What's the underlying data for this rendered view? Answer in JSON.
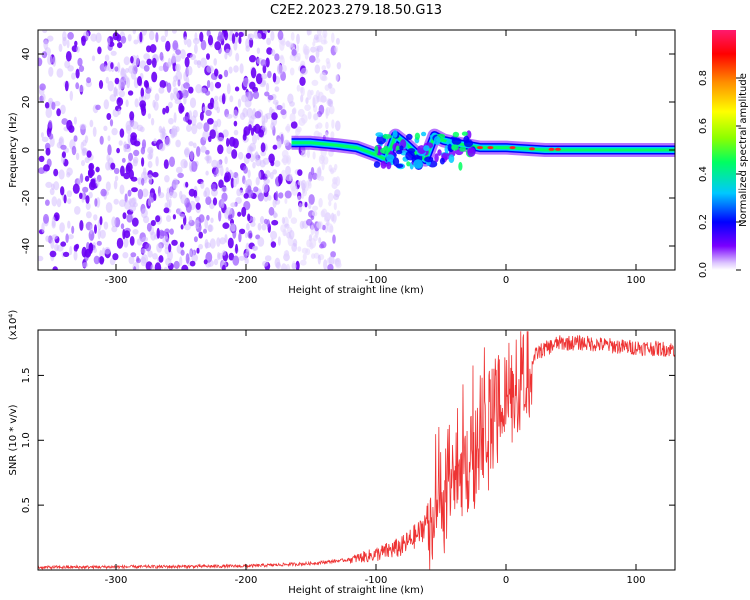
{
  "title": "C2E2.2023.279.18.50.G13",
  "chart_data": [
    {
      "type": "heatmap",
      "panel": "top",
      "xlabel": "Height of straight line (km)",
      "ylabel": "Frequency (Hz)",
      "xlim": [
        -360,
        130
      ],
      "ylim": [
        -50,
        50
      ],
      "x_ticks": [
        -300,
        -200,
        -100,
        0,
        100
      ],
      "y_ticks": [
        -40,
        -20,
        0,
        20,
        40
      ],
      "colorbar": {
        "label": "Normalized spectral amplitude",
        "range": [
          0.0,
          1.0
        ],
        "ticks": [
          0.0,
          0.2,
          0.4,
          0.6,
          0.8
        ],
        "tick_labels": [
          "0.0",
          "0.2",
          "0.4",
          "0.6",
          "0.8"
        ],
        "colors": [
          "#ffffff",
          "#dcc4ff",
          "#7a00ff",
          "#0000ff",
          "#00c8ff",
          "#00ff60",
          "#8cff00",
          "#ffff00",
          "#ff9000",
          "#ff0000",
          "#ff1a6e"
        ]
      },
      "noise_region_x": [
        -360,
        -140
      ],
      "signal_trace": [
        {
          "x": -165,
          "f": 3
        },
        {
          "x": -150,
          "f": 3
        },
        {
          "x": -130,
          "f": 2
        },
        {
          "x": -115,
          "f": 1
        },
        {
          "x": -100,
          "f": -2
        },
        {
          "x": -92,
          "f": -4
        },
        {
          "x": -85,
          "f": 6
        },
        {
          "x": -78,
          "f": 3
        },
        {
          "x": -70,
          "f": -1
        },
        {
          "x": -62,
          "f": -4
        },
        {
          "x": -55,
          "f": 6
        },
        {
          "x": -48,
          "f": 4
        },
        {
          "x": -40,
          "f": 3
        },
        {
          "x": -30,
          "f": 2
        },
        {
          "x": -20,
          "f": 1
        },
        {
          "x": -10,
          "f": 1
        },
        {
          "x": 0,
          "f": 1
        },
        {
          "x": 30,
          "f": 0
        },
        {
          "x": 80,
          "f": 0
        },
        {
          "x": 130,
          "f": 0
        }
      ]
    },
    {
      "type": "line",
      "panel": "bottom",
      "xlabel": "Height of straight line (km)",
      "ylabel": "SNR (10 * v/v)",
      "y_multiplier_label": "(x10⁴)",
      "xlim": [
        -360,
        130
      ],
      "ylim": [
        0,
        1.85
      ],
      "x_ticks": [
        -300,
        -200,
        -100,
        0,
        100
      ],
      "y_ticks": [
        0.5,
        1.0,
        1.5
      ],
      "y_tick_labels": [
        "0.5",
        "1.0",
        "1.5"
      ],
      "color": "#ee3333",
      "envelope": [
        {
          "x": -360,
          "y": 0.02
        },
        {
          "x": -200,
          "y": 0.03
        },
        {
          "x": -150,
          "y": 0.05
        },
        {
          "x": -120,
          "y": 0.08
        },
        {
          "x": -100,
          "y": 0.12
        },
        {
          "x": -80,
          "y": 0.18
        },
        {
          "x": -65,
          "y": 0.3
        },
        {
          "x": -55,
          "y": 0.55
        },
        {
          "x": -45,
          "y": 0.75
        },
        {
          "x": -35,
          "y": 0.9
        },
        {
          "x": -25,
          "y": 1.0
        },
        {
          "x": -15,
          "y": 1.15
        },
        {
          "x": -5,
          "y": 1.35
        },
        {
          "x": 5,
          "y": 1.45
        },
        {
          "x": 15,
          "y": 1.55
        },
        {
          "x": 25,
          "y": 1.68
        },
        {
          "x": 40,
          "y": 1.75
        },
        {
          "x": 60,
          "y": 1.75
        },
        {
          "x": 90,
          "y": 1.72
        },
        {
          "x": 130,
          "y": 1.7
        }
      ]
    }
  ]
}
